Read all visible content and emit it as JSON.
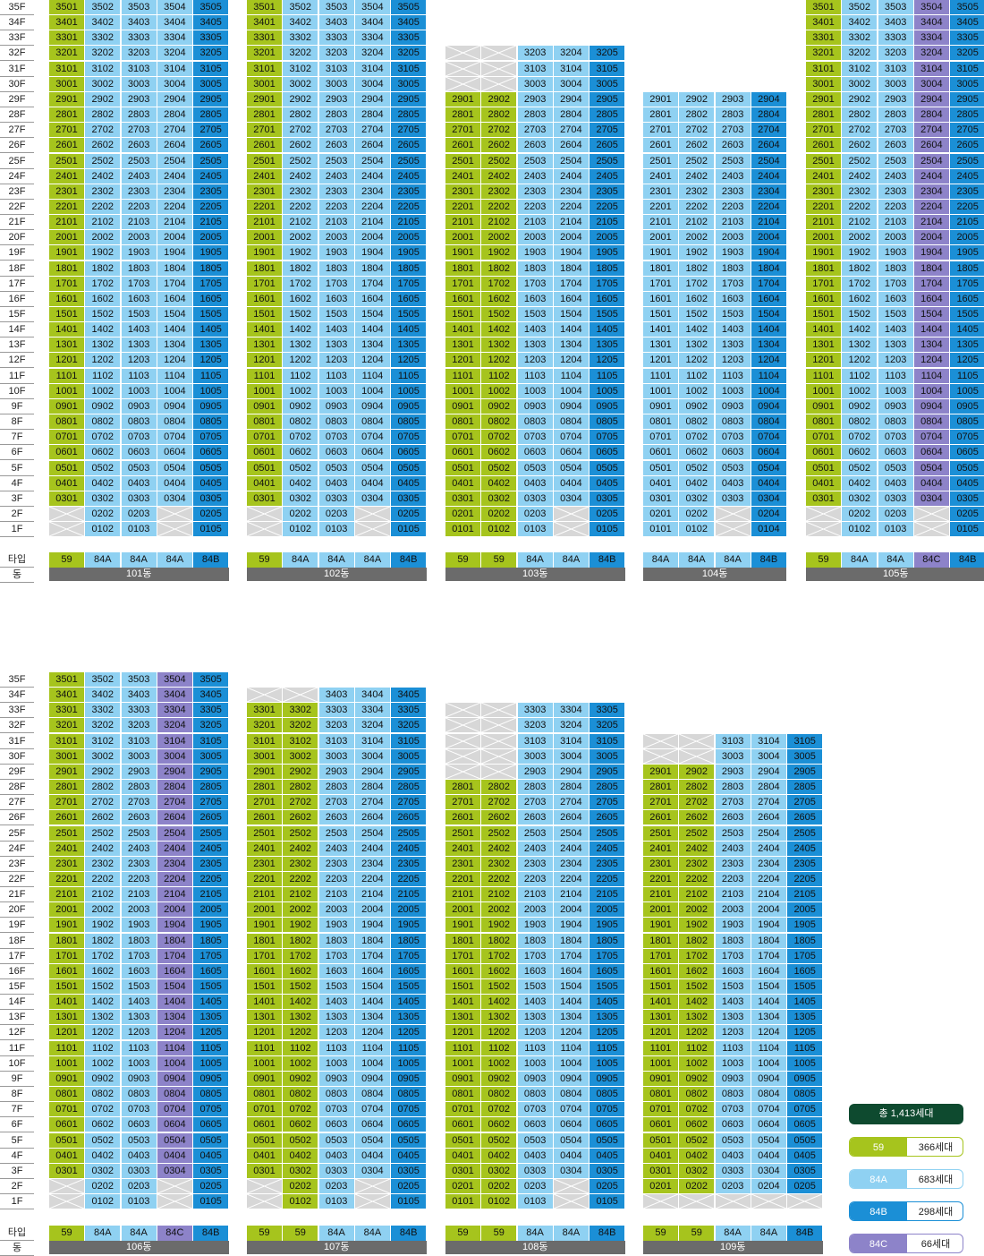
{
  "type_label": "타입",
  "dong_label": "동",
  "colors": {
    "59": "#a6c41d",
    "84A": "#8fd1f2",
    "84B": "#1b8fd6",
    "84C": "#8d83c9",
    "empty": "#d7d7d7",
    "dong_bar": "#6b6b6b",
    "total_bg": "#0e4a2f"
  },
  "legend": {
    "total": "총 1,413세대",
    "items": [
      {
        "type": "59",
        "count": "366세대"
      },
      {
        "type": "84A",
        "count": "683세대"
      },
      {
        "type": "84B",
        "count": "298세대"
      },
      {
        "type": "84C",
        "count": "66세대"
      }
    ]
  },
  "sections": [
    {
      "top_floor": 35,
      "buildings": [
        {
          "name": "101동",
          "types": [
            "59",
            "84A",
            "84A",
            "84A",
            "84B"
          ],
          "floors": {
            "1": [
              null,
              1,
              1,
              null,
              1
            ],
            "2": [
              null,
              1,
              1,
              null,
              1
            ],
            "3-35": [
              1,
              1,
              1,
              1,
              1
            ]
          }
        },
        {
          "name": "102동",
          "types": [
            "59",
            "84A",
            "84A",
            "84A",
            "84B"
          ],
          "floors": {
            "1": [
              null,
              1,
              1,
              null,
              1
            ],
            "2": [
              null,
              1,
              1,
              null,
              1
            ],
            "3-35": [
              1,
              1,
              1,
              1,
              1
            ]
          }
        },
        {
          "name": "103동",
          "types": [
            "59",
            "59",
            "84A",
            "84A",
            "84B"
          ],
          "floors": {
            "1-2": [
              1,
              1,
              1,
              null,
              1
            ],
            "3-29": [
              1,
              1,
              1,
              1,
              1
            ],
            "30-31": [
              null,
              null,
              1,
              1,
              1
            ],
            "32": [
              null,
              null,
              1,
              1,
              1
            ]
          }
        },
        {
          "name": "104동",
          "types": [
            "84A",
            "84A",
            "84A",
            "84B"
          ],
          "floors": {
            "1-2": [
              1,
              1,
              null,
              1
            ],
            "3-29": [
              1,
              1,
              1,
              1
            ]
          }
        },
        {
          "name": "105동",
          "types": [
            "59",
            "84A",
            "84A",
            "84C",
            "84B"
          ],
          "floors": {
            "1": [
              null,
              1,
              1,
              null,
              1
            ],
            "2": [
              null,
              1,
              1,
              null,
              1
            ],
            "3-35": [
              1,
              1,
              1,
              1,
              1
            ]
          }
        }
      ]
    },
    {
      "top_floor": 35,
      "buildings": [
        {
          "name": "106동",
          "types": [
            "59",
            "84A",
            "84A",
            "84C",
            "84B"
          ],
          "floors": {
            "1": [
              null,
              1,
              1,
              null,
              1
            ],
            "2": [
              null,
              1,
              1,
              null,
              1
            ],
            "3-35": [
              1,
              1,
              1,
              1,
              1
            ]
          }
        },
        {
          "name": "107동",
          "types": [
            "59",
            "59",
            "84A",
            "84A",
            "84B"
          ],
          "floors": {
            "1": [
              null,
              1,
              1,
              null,
              1
            ],
            "2": [
              null,
              1,
              1,
              null,
              1
            ],
            "3-33": [
              1,
              1,
              1,
              1,
              1
            ],
            "34": [
              null,
              null,
              1,
              1,
              1
            ]
          }
        },
        {
          "name": "108동",
          "types": [
            "59",
            "59",
            "84A",
            "84A",
            "84B"
          ],
          "floors": {
            "1": [
              1,
              1,
              1,
              null,
              1
            ],
            "2": [
              1,
              1,
              1,
              null,
              1
            ],
            "3-28": [
              1,
              1,
              1,
              1,
              1
            ],
            "29-33": [
              null,
              null,
              1,
              1,
              1
            ]
          }
        },
        {
          "name": "109동",
          "types": [
            "59",
            "59",
            "84A",
            "84A",
            "84B"
          ],
          "floors": {
            "1": [
              null,
              null,
              null,
              null,
              null
            ],
            "2-29": [
              1,
              1,
              1,
              1,
              1
            ],
            "30-31": [
              null,
              null,
              1,
              1,
              1
            ]
          }
        }
      ]
    }
  ]
}
